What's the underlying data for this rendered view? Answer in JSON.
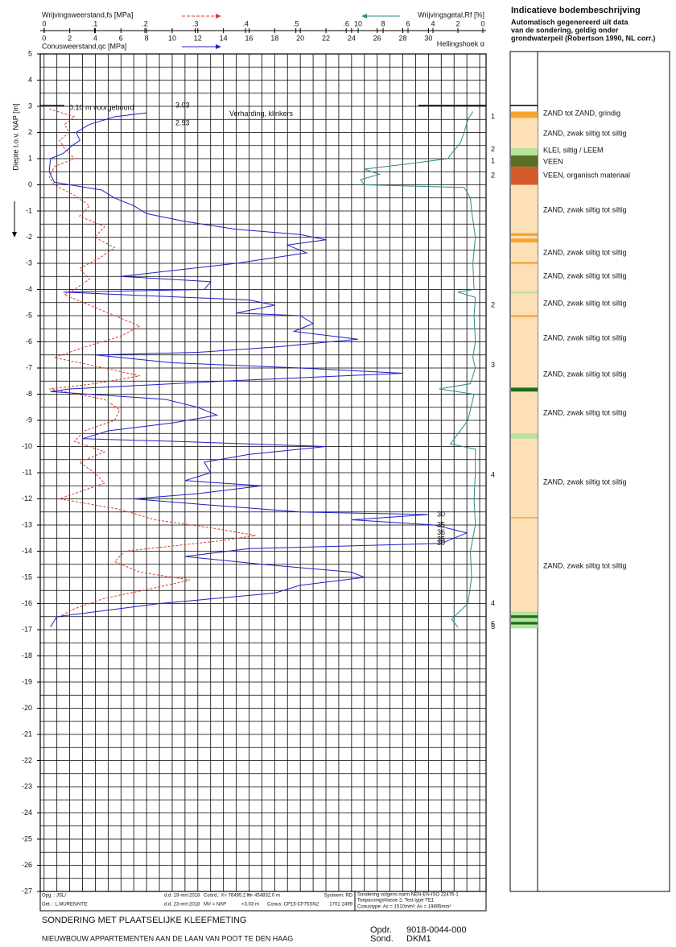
{
  "chart_data": {
    "type": "cpt",
    "ylabel": "Diepte t.o.v. NAP [m]",
    "ylim": [
      5,
      -27
    ],
    "yticks": [
      5,
      4,
      3,
      2,
      1,
      0,
      -1,
      -2,
      -3,
      -4,
      -5,
      -6,
      -7,
      -8,
      -9,
      -10,
      -11,
      -12,
      -13,
      -14,
      -15,
      -16,
      -17,
      -18,
      -19,
      -20,
      -21,
      -22,
      -23,
      -24,
      -25,
      -26,
      -27
    ],
    "ygrid_step": 0.5,
    "grid": true,
    "qc": {
      "label": "Conusweerstand,qc [MPa]",
      "color": "#2020c8",
      "xlim": [
        -0.3,
        34.5
      ],
      "xticks": [
        0,
        2,
        4,
        6,
        8,
        10,
        12,
        14,
        16,
        18,
        20,
        22,
        24,
        26,
        28,
        30
      ],
      "grid_step": 1,
      "depth": [
        2.75,
        2.6,
        2.3,
        2.0,
        1.7,
        1.5,
        1.2,
        1.0,
        0.5,
        0.1,
        0.0,
        -0.2,
        -0.5,
        -0.8,
        -1.1,
        -1.4,
        -1.7,
        -1.9,
        -2.1,
        -2.3,
        -2.6,
        -3.0,
        -3.5,
        -3.7,
        -4.0,
        -4.1,
        -4.4,
        -4.6,
        -4.9,
        -5.0,
        -5.3,
        -5.6,
        -5.9,
        -6.2,
        -6.4,
        -6.5,
        -6.8,
        -7.0,
        -7.2,
        -7.5,
        -7.8,
        -7.9,
        -8.2,
        -8.5,
        -8.8,
        -9.1,
        -9.4,
        -9.7,
        -9.8,
        -10.0,
        -10.3,
        -10.6,
        -11.0,
        -11.3,
        -11.5,
        -11.8,
        -12.0,
        -12.2,
        -12.5,
        -12.6,
        -12.8,
        -13.0,
        -13.3,
        -13.5,
        -13.7,
        -13.9,
        -14.2,
        -14.5,
        -14.8,
        -15.0,
        -15.3,
        -15.6,
        -16.0,
        -16.5,
        -16.9
      ],
      "values": [
        8.0,
        5.5,
        3.5,
        2.5,
        2.8,
        2.2,
        1.5,
        0.5,
        0.4,
        0.8,
        2.0,
        4.5,
        5.5,
        7.0,
        8.0,
        11.0,
        15.0,
        20.0,
        22.0,
        19.0,
        20.5,
        15.0,
        6.0,
        13.0,
        12.5,
        1.5,
        16.0,
        18.0,
        15.0,
        20.0,
        21.0,
        19.5,
        24.5,
        18.0,
        12.0,
        4.0,
        10.0,
        20.0,
        28.0,
        14.0,
        2.0,
        0.5,
        9.5,
        12.0,
        13.5,
        10.0,
        5.0,
        3.0,
        10.0,
        22.0,
        16.0,
        12.5,
        13.0,
        11.0,
        17.0,
        12.0,
        7.0,
        12.0,
        20.0,
        30.0,
        24.0,
        30.5,
        33.0,
        32.0,
        31.0,
        16.0,
        11.0,
        17.0,
        24.0,
        25.0,
        20.0,
        18.0,
        9.0,
        1.0,
        0.5
      ]
    },
    "fs": {
      "label": "Wrijvingsweerstand,fs [MPa]",
      "color": "#e03a2a",
      "xlim": [
        -0.008,
        0.878
      ],
      "xticks": [
        0,
        {
          "value": 0.1,
          "label": ".1"
        },
        {
          "value": 0.2,
          "label": ".2"
        },
        {
          "value": 0.3,
          "label": ".3"
        },
        {
          "value": 0.4,
          "label": ".4"
        },
        {
          "value": 0.5,
          "label": ".5"
        },
        {
          "value": 0.6,
          "label": ".6"
        }
      ],
      "depth": [
        2.9,
        2.6,
        2.3,
        2.0,
        1.7,
        1.4,
        1.0,
        0.7,
        0.3,
        0.0,
        -0.4,
        -0.8,
        -1.2,
        -1.6,
        -2.0,
        -2.4,
        -2.8,
        -3.2,
        -3.6,
        -4.0,
        -4.2,
        -4.6,
        -5.0,
        -5.4,
        -5.8,
        -6.2,
        -6.6,
        -7.0,
        -7.3,
        -7.6,
        -7.8,
        -8.2,
        -8.6,
        -9.0,
        -9.4,
        -9.8,
        -10.2,
        -10.6,
        -11.0,
        -11.4,
        -11.8,
        -12.0,
        -12.4,
        -12.8,
        -13.1,
        -13.4,
        -13.6,
        -14.0,
        -14.4,
        -14.8,
        -15.1,
        -15.4,
        -15.8,
        -16.2,
        -16.6
      ],
      "values": [
        0.01,
        0.06,
        0.04,
        0.05,
        0.03,
        0.04,
        0.06,
        0.02,
        0.01,
        0.02,
        0.06,
        0.09,
        0.07,
        0.12,
        0.1,
        0.14,
        0.11,
        0.07,
        0.09,
        0.06,
        0.04,
        0.09,
        0.14,
        0.19,
        0.15,
        0.08,
        0.02,
        0.12,
        0.19,
        0.1,
        0.01,
        0.12,
        0.15,
        0.14,
        0.08,
        0.06,
        0.12,
        0.07,
        0.1,
        0.12,
        0.06,
        0.03,
        0.15,
        0.22,
        0.33,
        0.42,
        0.35,
        0.16,
        0.14,
        0.19,
        0.29,
        0.22,
        0.12,
        0.06,
        0.02
      ]
    },
    "rf": {
      "label": "Wrijvingsgetal,Rf [%]",
      "color": "#2a8a8a",
      "xlim": [
        35.5,
        -0.26
      ],
      "xticks": [
        10,
        8,
        6,
        4,
        2,
        0
      ],
      "depth": [
        2.8,
        2.5,
        2.0,
        1.6,
        1.2,
        1.0,
        0.8,
        0.6,
        0.4,
        0.2,
        0.0,
        -0.1,
        -0.5,
        -1.0,
        -2.0,
        -3.0,
        -4.0,
        -4.1,
        -4.3,
        -5.0,
        -6.0,
        -6.6,
        -7.0,
        -7.6,
        -7.8,
        -8.0,
        -9.0,
        -9.9,
        -10.1,
        -11.0,
        -12.0,
        -13.0,
        -14.0,
        -15.0,
        -16.0,
        -16.6,
        -16.9
      ],
      "values": [
        0.8,
        1.2,
        1.5,
        1.8,
        2.5,
        2.8,
        6.0,
        9.5,
        8.3,
        9.8,
        9.5,
        1.5,
        1.0,
        0.9,
        0.6,
        0.8,
        0.7,
        2.0,
        0.6,
        0.7,
        0.6,
        0.8,
        0.6,
        1.0,
        3.5,
        0.7,
        1.2,
        2.6,
        0.6,
        0.6,
        0.7,
        0.6,
        1.0,
        0.9,
        1.2,
        2.5,
        2.0
      ]
    },
    "inclination": {
      "label": "Hellingshoek α",
      "depth": [
        2.6,
        1.35,
        0.9,
        0.35,
        -4.6,
        -6.9,
        -11.1,
        -16.0,
        -16.8,
        -16.9
      ],
      "values": [
        1,
        2,
        1,
        2,
        2,
        3,
        4,
        4,
        5,
        5
      ]
    },
    "qc_offscale": {
      "depth": [
        -12.6,
        -13.0,
        -13.3,
        -13.55,
        -13.7
      ],
      "values": [
        30,
        35,
        36,
        35,
        30
      ]
    },
    "annotations": [
      {
        "text": "0.10  m voorgeboord",
        "depth": 2.93
      },
      {
        "text": "3.03",
        "depth": 3.03
      },
      {
        "text": "2.93",
        "depth": 2.35
      },
      {
        "text": "Verharding, klinkers",
        "depth": 2.7
      }
    ]
  },
  "soil": {
    "title": "Indicatieve bodembeschrijving",
    "subtitle": [
      "Automatisch gegenereerd uit data",
      "van de sondering, geldig onder",
      "grondwaterpeil (Robertson 1990, NL corr.)"
    ],
    "layers": [
      {
        "top": 2.8,
        "bottom": 2.55,
        "color": "#f6a531"
      },
      {
        "top": 2.55,
        "bottom": 1.4,
        "color": "#fde0b6"
      },
      {
        "top": 1.4,
        "bottom": 1.12,
        "color": "#b5e39c"
      },
      {
        "top": 1.12,
        "bottom": 0.69,
        "color": "#5b6f22"
      },
      {
        "top": 0.69,
        "bottom": 0.0,
        "color": "#d55a2c"
      },
      {
        "top": 0.0,
        "bottom": -16.3,
        "color": "#fde0b6"
      },
      {
        "top": -1.85,
        "bottom": -1.95,
        "color": "#f6a531"
      },
      {
        "top": -2.05,
        "bottom": -2.2,
        "color": "#f6a531"
      },
      {
        "top": -2.95,
        "bottom": -3.02,
        "color": "#f6a531"
      },
      {
        "top": -4.08,
        "bottom": -4.15,
        "color": "#b5e39c"
      },
      {
        "top": -4.98,
        "bottom": -5.05,
        "color": "#f6a531"
      },
      {
        "top": -7.75,
        "bottom": -7.9,
        "color": "#1c6e1c"
      },
      {
        "top": -9.5,
        "bottom": -9.7,
        "color": "#b5e39c"
      },
      {
        "top": -12.7,
        "bottom": -12.74,
        "color": "#f6a531"
      },
      {
        "top": -16.3,
        "bottom": -16.95,
        "color": "#b5e39c"
      },
      {
        "top": -16.45,
        "bottom": -16.55,
        "color": "#1c6e1c"
      },
      {
        "top": -16.7,
        "bottom": -16.8,
        "color": "#1c6e1c"
      }
    ],
    "labels": [
      {
        "text": "ZAND tot ZAND, grindig",
        "depth": 2.72
      },
      {
        "text": "ZAND, zwak siltig tot siltig",
        "depth": 1.95
      },
      {
        "text": "KLEI, siltig / LEEM",
        "depth": 1.31
      },
      {
        "text": "VEEN",
        "depth": 0.88
      },
      {
        "text": "VEEN, organisch materiaal",
        "depth": 0.35
      },
      {
        "text": "ZAND, zwak siltig tot siltig",
        "depth": -0.97
      },
      {
        "text": "ZAND, zwak siltig tot siltig",
        "depth": -2.6
      },
      {
        "text": "ZAND, zwak siltig tot siltig",
        "depth": -3.49
      },
      {
        "text": "ZAND, zwak siltig tot siltig",
        "depth": -4.54
      },
      {
        "text": "ZAND, zwak siltig tot siltig",
        "depth": -5.86
      },
      {
        "text": "ZAND, zwak siltig tot siltig",
        "depth": -7.25
      },
      {
        "text": "ZAND, zwak siltig tot siltig",
        "depth": -8.72
      },
      {
        "text": "ZAND, zwak siltig tot siltig",
        "depth": -11.37
      },
      {
        "text": "ZAND, zwak siltig tot siltig",
        "depth": -14.57
      }
    ]
  },
  "footer": {
    "opg": "Opg. : JSL/",
    "get": "Get. : L.MURENAITE",
    "dd1": "d.d. 19-mrt-2018",
    "dd2": "d.d. 23-mrt-2018",
    "coordx": "Coörd.: X=  76495.2 m",
    "coordy": "Y= 454832.0 m",
    "mv": "MV = NAP",
    "mvh": "+3.03 m",
    "conus": "Conus: CP15-CF75SN2",
    "systeem": "Systeem: RD",
    "nr": "1701-2499",
    "norm": "Sondering volgens norm NEN-EN-ISO 22476-1",
    "klasse": "Toepassingsklasse 2,   Test type TE1",
    "conustype": "Conustype: Ac = 1510mm²;   As = 19895mm²",
    "title": "SONDERING MET PLAATSELIJKE KLEEFMETING",
    "project": "NIEUWBOUW APPARTEMENTEN AAN DE LAAN VAN POOT TE DEN HAAG",
    "opdr_label": "Opdr.",
    "opdr": "9018-0044-000",
    "sond_label": "Sond.",
    "sond": "DKM1"
  }
}
